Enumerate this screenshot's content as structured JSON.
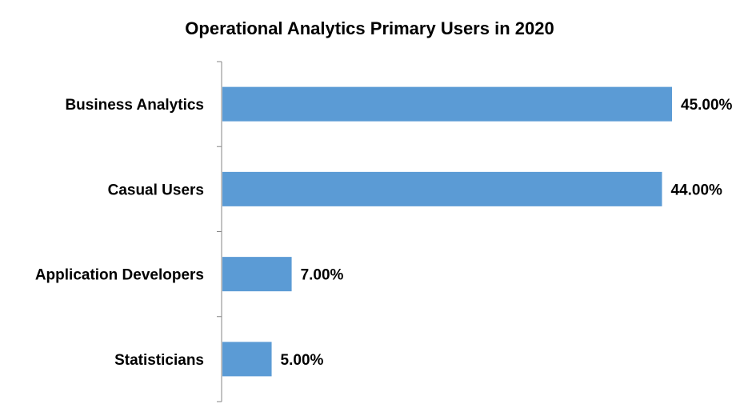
{
  "chart_data": {
    "type": "bar",
    "orientation": "horizontal",
    "title": "Operational Analytics Primary Users in 2020",
    "categories": [
      "Business Analytics",
      "Casual Users",
      "Application Developers",
      "Statisticians"
    ],
    "values": [
      45.0,
      44.0,
      7.0,
      5.0
    ],
    "data_labels": [
      "45.00%",
      "44.00%",
      "7.00%",
      "5.00%"
    ],
    "xlim": [
      0,
      45
    ],
    "xlabel": "",
    "ylabel": "",
    "grid": false,
    "legend": "none",
    "colors": {
      "bar": "#5B9BD5",
      "axis": "#868686"
    }
  }
}
